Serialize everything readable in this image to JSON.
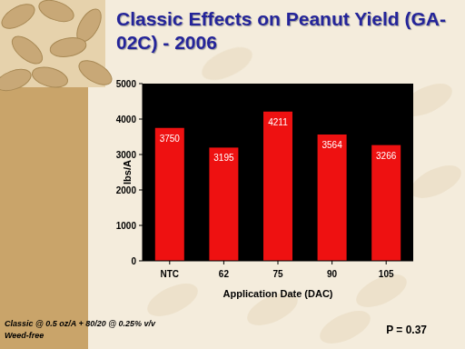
{
  "chart_data": {
    "type": "bar",
    "title": "Classic Effects on Peanut Yield (GA-02C) - 2006",
    "categories": [
      "NTC",
      "62",
      "75",
      "90",
      "105"
    ],
    "values": [
      3750,
      3195,
      4211,
      3564,
      3266
    ],
    "color": "#ee1111",
    "ylim": [
      0,
      5000
    ],
    "yticks": [
      0,
      1000,
      2000,
      3000,
      4000,
      5000
    ],
    "y_label": "lbs/A",
    "x_label": "Application Date (DAC)",
    "data_labels": true,
    "grid": false,
    "annotations": [
      "Classic @ 0.5 oz/A + 80/20 @ 0.25% v/v",
      "Weed-free",
      "P = 0.37"
    ]
  }
}
